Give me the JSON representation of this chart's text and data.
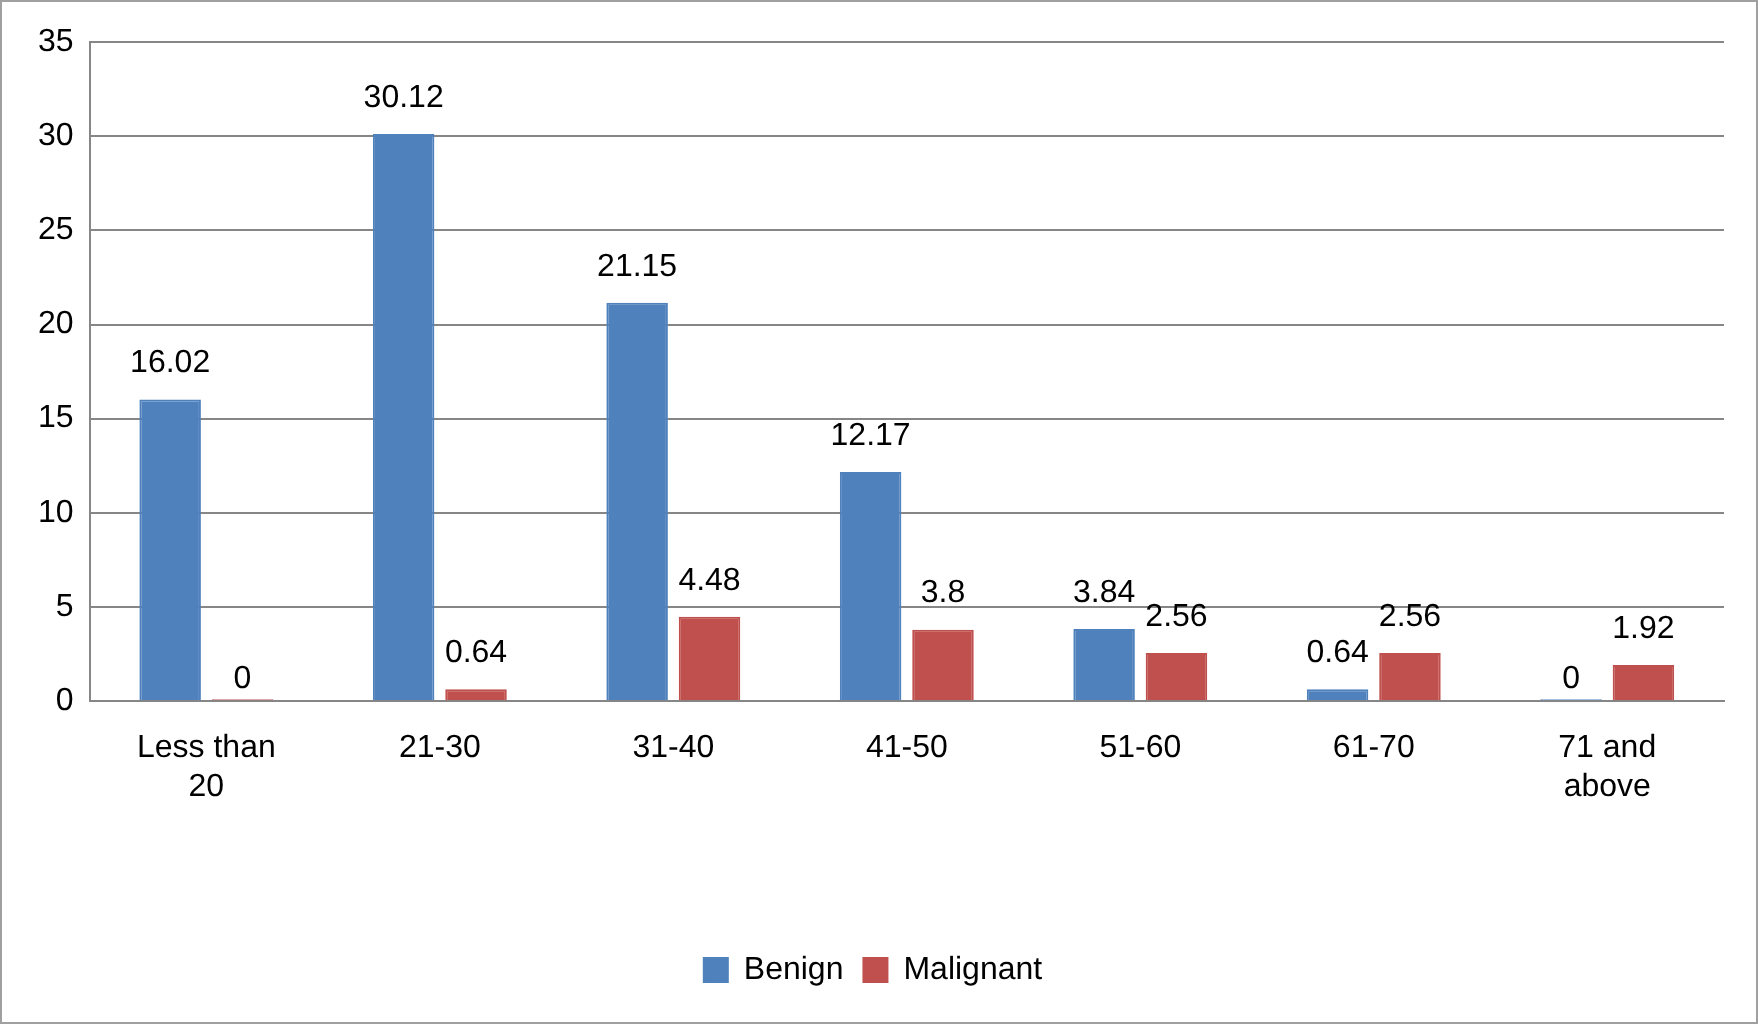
{
  "chart_data": {
    "type": "bar",
    "categories": [
      "Less than 20",
      "21-30",
      "31-40",
      "41-50",
      "51-60",
      "61-70",
      "71 and above"
    ],
    "series": [
      {
        "name": "Benign",
        "color": "#4f81bd",
        "values": [
          16.02,
          30.12,
          21.15,
          12.17,
          3.84,
          0.64,
          0
        ]
      },
      {
        "name": "Malignant",
        "color": "#c0504d",
        "values": [
          0,
          0.64,
          4.48,
          3.8,
          2.56,
          2.56,
          1.92
        ]
      }
    ],
    "ylim": [
      0,
      35
    ],
    "yticks": [
      0,
      5,
      10,
      15,
      20,
      25,
      30,
      35
    ],
    "grid": "y",
    "legend": "bottom",
    "data_labels": true
  }
}
